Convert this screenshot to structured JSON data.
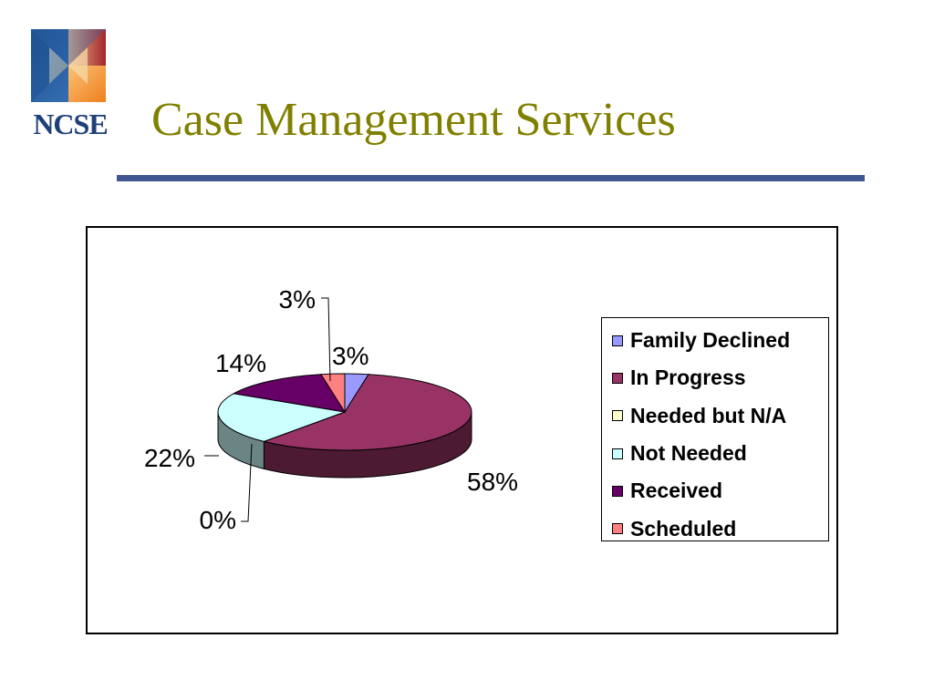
{
  "header": {
    "logo_text": "NCSE",
    "title": "Case Management Services",
    "title_color": "#808000",
    "rule_color": "#3f5690"
  },
  "chart_data": {
    "type": "pie",
    "style": "3d",
    "title": "",
    "legend_position": "right",
    "slices": [
      {
        "label": "Family Declined",
        "value": 3,
        "value_label": "3%",
        "color": "#9999ff",
        "side_color": "#5c5c99"
      },
      {
        "label": "In Progress",
        "value": 58,
        "value_label": "58%",
        "color": "#993366",
        "side_color": "#4d1a33"
      },
      {
        "label": "Needed but N/A",
        "value": 0,
        "value_label": "0%",
        "color": "#ffffcc",
        "side_color": "#999977"
      },
      {
        "label": "Not Needed",
        "value": 22,
        "value_label": "22%",
        "color": "#ccffff",
        "side_color": "#6b8585"
      },
      {
        "label": "Received",
        "value": 14,
        "value_label": "14%",
        "color": "#660066",
        "side_color": "#330033"
      },
      {
        "label": "Scheduled",
        "value": 3,
        "value_label": "3%",
        "color": "#ff8080",
        "side_color": "#994d4d"
      }
    ]
  }
}
